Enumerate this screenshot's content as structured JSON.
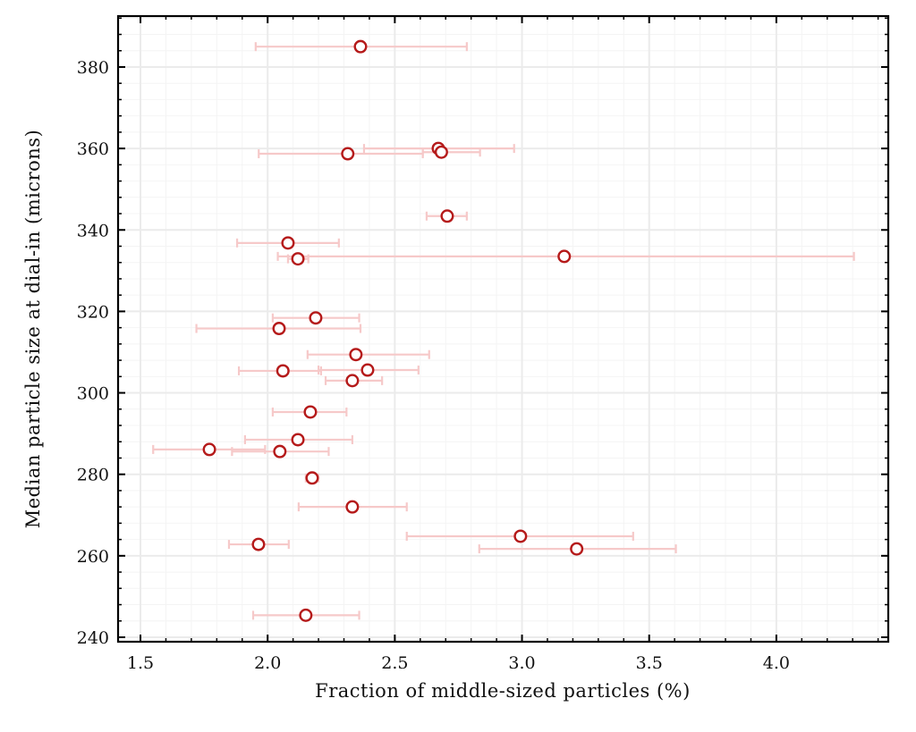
{
  "chart_data": {
    "type": "scatter",
    "title": "",
    "xlabel": "Fraction of middle-sized particles (%)",
    "ylabel": "Median particle size at dial-in (microns)",
    "xlim": [
      1.412,
      4.44
    ],
    "ylim": [
      238.9,
      392.5
    ],
    "xticks": [
      1.5,
      2.0,
      2.5,
      3.0,
      3.5,
      4.0
    ],
    "xtick_labels": [
      "1.5",
      "2.0",
      "2.5",
      "3.0",
      "3.5",
      "4.0"
    ],
    "yticks": [
      240,
      260,
      280,
      300,
      320,
      340,
      360,
      380
    ],
    "ytick_labels": [
      "240",
      "260",
      "280",
      "300",
      "320",
      "340",
      "360",
      "380"
    ],
    "grid": true,
    "marker_color": "#b51a1a",
    "errorbar_color": "#f6c9c9",
    "points": [
      {
        "x": 2.365,
        "y": 385.0,
        "xlo": 1.953,
        "xhi": 2.783
      },
      {
        "x": 2.671,
        "y": 360.0,
        "xlo": 2.379,
        "xhi": 2.969
      },
      {
        "x": 2.683,
        "y": 359.1,
        "xlo": 2.61,
        "xhi": 2.835
      },
      {
        "x": 2.315,
        "y": 358.7,
        "xlo": 1.965,
        "xhi": 2.61
      },
      {
        "x": 2.706,
        "y": 343.4,
        "xlo": 2.625,
        "xhi": 2.783
      },
      {
        "x": 2.08,
        "y": 336.8,
        "xlo": 1.88,
        "xhi": 2.28
      },
      {
        "x": 3.166,
        "y": 333.5,
        "xlo": 2.04,
        "xhi": 4.305
      },
      {
        "x": 2.119,
        "y": 332.9,
        "xlo": 2.08,
        "xhi": 2.16
      },
      {
        "x": 2.189,
        "y": 318.4,
        "xlo": 2.02,
        "xhi": 2.36
      },
      {
        "x": 2.045,
        "y": 315.8,
        "xlo": 1.72,
        "xhi": 2.365
      },
      {
        "x": 2.347,
        "y": 309.4,
        "xlo": 2.157,
        "xhi": 2.635
      },
      {
        "x": 2.06,
        "y": 305.4,
        "xlo": 1.887,
        "xhi": 2.21
      },
      {
        "x": 2.393,
        "y": 305.6,
        "xlo": 2.2,
        "xhi": 2.593
      },
      {
        "x": 2.333,
        "y": 303.0,
        "xlo": 2.228,
        "xhi": 2.45
      },
      {
        "x": 2.168,
        "y": 295.3,
        "xlo": 2.02,
        "xhi": 2.31
      },
      {
        "x": 2.119,
        "y": 288.5,
        "xlo": 1.911,
        "xhi": 2.333
      },
      {
        "x": 1.771,
        "y": 286.1,
        "xlo": 1.55,
        "xhi": 1.99
      },
      {
        "x": 2.048,
        "y": 285.6,
        "xlo": 1.86,
        "xhi": 2.24
      },
      {
        "x": 2.175,
        "y": 279.1,
        "xlo": 2.15,
        "xhi": 2.2
      },
      {
        "x": 2.333,
        "y": 272.0,
        "xlo": 2.122,
        "xhi": 2.547
      },
      {
        "x": 2.994,
        "y": 264.8,
        "xlo": 2.547,
        "xhi": 3.437
      },
      {
        "x": 1.964,
        "y": 262.8,
        "xlo": 1.848,
        "xhi": 2.083
      },
      {
        "x": 3.215,
        "y": 261.7,
        "xlo": 2.832,
        "xhi": 3.605
      },
      {
        "x": 2.15,
        "y": 245.4,
        "xlo": 1.943,
        "xhi": 2.36
      }
    ]
  }
}
